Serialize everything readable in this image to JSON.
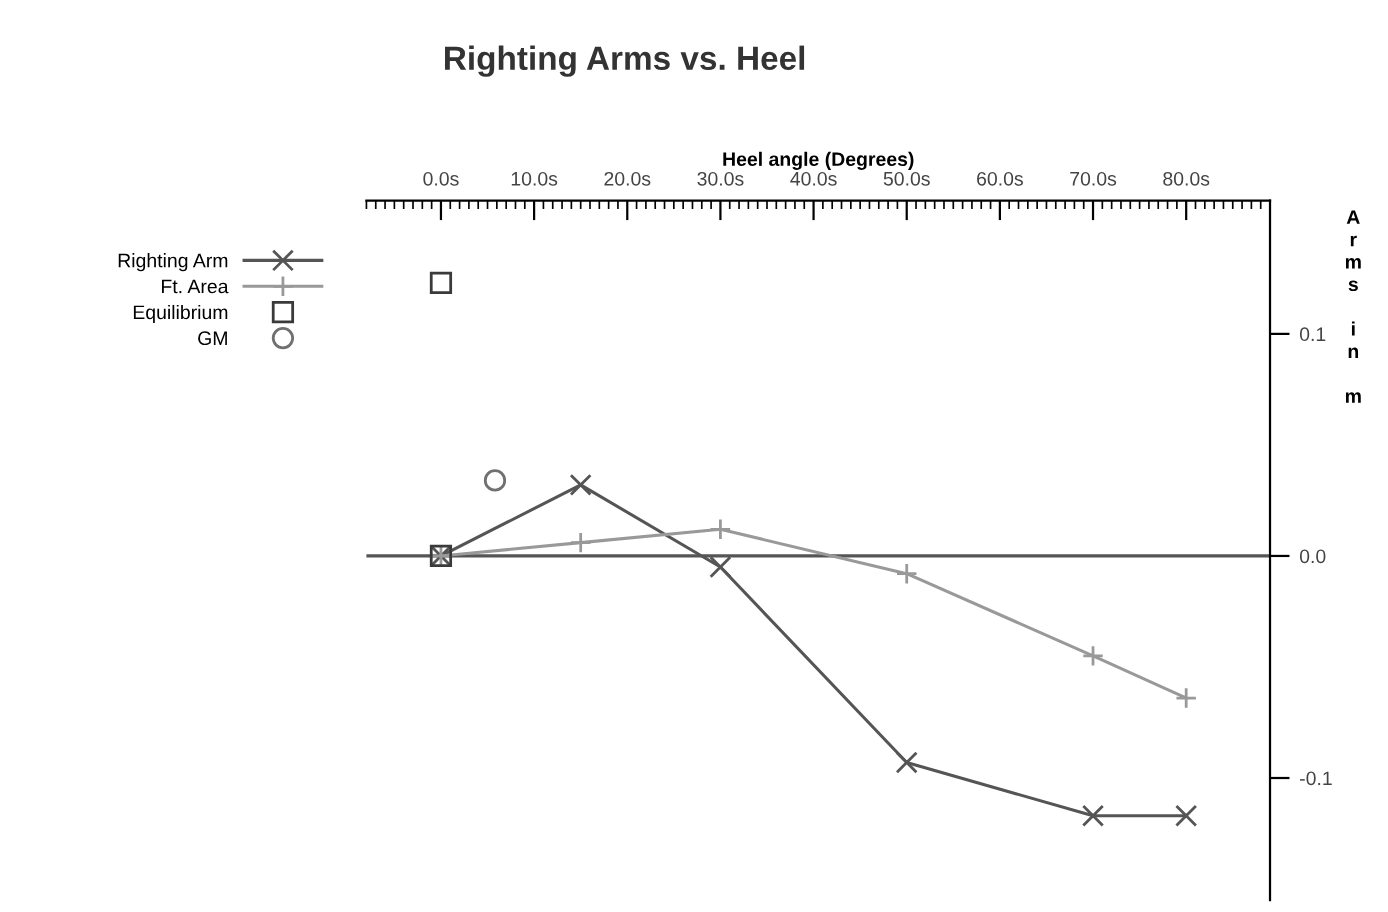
{
  "chart_data": {
    "type": "line",
    "title": "Righting Arms vs. Heel",
    "xlabel": "Heel angle (Degrees)",
    "ylabel": "Arms in m",
    "xlim": [
      -8,
      89
    ],
    "ylim": [
      -0.155,
      0.16
    ],
    "xticks": [
      {
        "value": 0,
        "label": "0.0s"
      },
      {
        "value": 10,
        "label": "10.0s"
      },
      {
        "value": 20,
        "label": "20.0s"
      },
      {
        "value": 30,
        "label": "30.0s"
      },
      {
        "value": 40,
        "label": "40.0s"
      },
      {
        "value": 50,
        "label": "50.0s"
      },
      {
        "value": 60,
        "label": "60.0s"
      },
      {
        "value": 70,
        "label": "70.0s"
      },
      {
        "value": 80,
        "label": "80.0s"
      }
    ],
    "yticks": [
      {
        "value": -0.1,
        "label": "-0.1"
      },
      {
        "value": 0,
        "label": "0.0"
      },
      0.1
    ],
    "ref_lines": [
      {
        "axis": "y",
        "value": 0,
        "color": "#555555"
      }
    ],
    "legend": "left",
    "grid": false,
    "series": [
      {
        "name": "Righting Arm",
        "color": "#555555",
        "marker": "cross",
        "x": [
          0,
          15,
          30,
          50,
          70,
          80
        ],
        "values": [
          0,
          0.032,
          -0.005,
          -0.093,
          -0.117,
          -0.117
        ]
      },
      {
        "name": "Ft. Area",
        "color": "#999999",
        "marker": "plus",
        "x": [
          0,
          15,
          30,
          50,
          70,
          80
        ],
        "values": [
          0,
          0.006,
          0.012,
          -0.008,
          -0.045,
          -0.064
        ]
      },
      {
        "name": "Equilibrium",
        "type": "scatter",
        "color": "#3a3a3a",
        "marker": "square",
        "x": [
          0,
          0
        ],
        "values": [
          0,
          0.123
        ]
      },
      {
        "name": "GM",
        "type": "scatter",
        "color": "#707070",
        "marker": "circle",
        "x": [
          5.8
        ],
        "values": [
          0.034
        ]
      }
    ]
  }
}
